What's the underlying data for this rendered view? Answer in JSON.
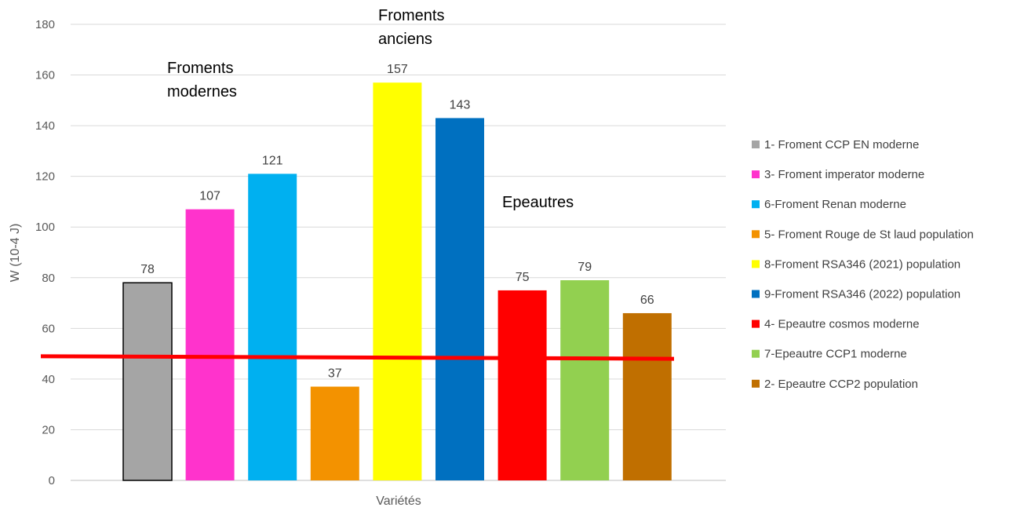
{
  "chart_data": {
    "type": "bar",
    "title": "",
    "xlabel": "Variétés",
    "ylabel": "W (10-4 J)",
    "ylim": [
      0,
      180
    ],
    "yticks": [
      0,
      20,
      40,
      60,
      80,
      100,
      120,
      140,
      160,
      180
    ],
    "grid": true,
    "legend_position": "right",
    "series": [
      {
        "name": "1- Froment CCP EN moderne",
        "value": 78,
        "color": "#a5a5a5",
        "outlined": true
      },
      {
        "name": "3- Froment imperator moderne",
        "value": 107,
        "color": "#ff33cc"
      },
      {
        "name": "6-Froment Renan moderne",
        "value": 121,
        "color": "#00b0f0"
      },
      {
        "name": "5- Froment Rouge de St laud population",
        "value": 37,
        "color": "#f39200"
      },
      {
        "name": "8-Froment RSA346 (2021) population",
        "value": 157,
        "color": "#ffff00"
      },
      {
        "name": "9-Froment RSA346 (2022) population",
        "value": 143,
        "color": "#0070c0"
      },
      {
        "name": "4- Epeautre cosmos moderne",
        "value": 75,
        "color": "#ff0000"
      },
      {
        "name": "7-Epeautre CCP1 moderne",
        "value": 79,
        "color": "#92d050"
      },
      {
        "name": "2- Epeautre CCP2 population",
        "value": 66,
        "color": "#c06f00"
      }
    ],
    "reference_line": {
      "from_value": 49,
      "to_value": 48,
      "color": "#ff0000"
    },
    "annotations": [
      {
        "lines": [
          "Froments",
          "modernes"
        ]
      },
      {
        "lines": [
          "Froments",
          "anciens"
        ]
      },
      {
        "lines": [
          "Epeautres"
        ]
      }
    ]
  }
}
